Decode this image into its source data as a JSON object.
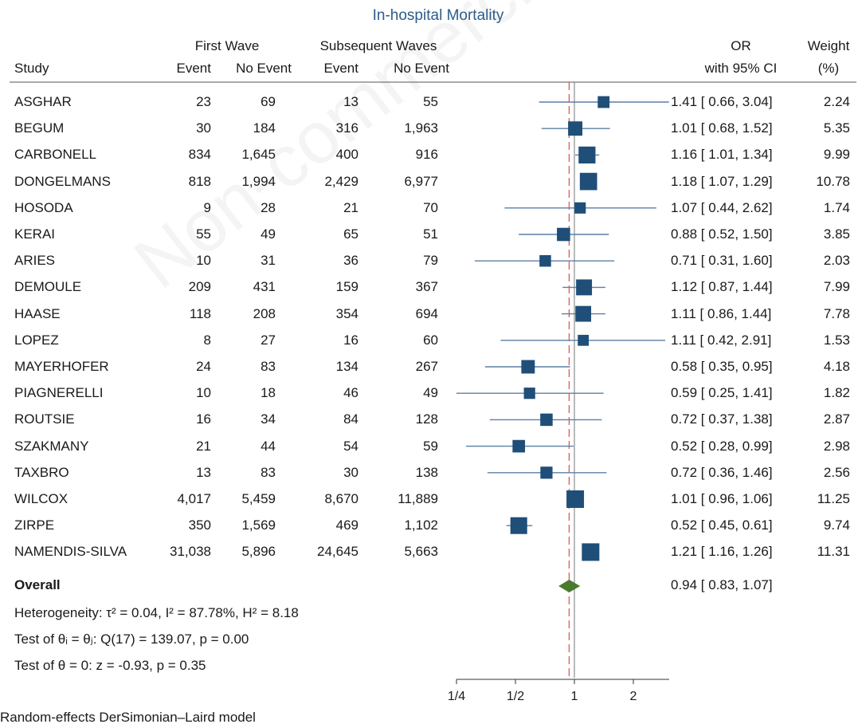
{
  "header": {
    "title": "In-hospital Mortality",
    "group1": "First Wave",
    "group2": "Subsequent Waves",
    "study_col": "Study",
    "event_col": "Event",
    "noevent_col": "No Event",
    "or_col_line1": "OR",
    "or_col_line2": "with 95% CI",
    "weight_line1": "Weight",
    "weight_line2": "(%)"
  },
  "rows": [
    {
      "study": "ASGHAR",
      "fw_event": "23",
      "fw_noevent": "69",
      "sw_event": "13",
      "sw_noevent": "55",
      "or_text": "1.41 [ 0.66, 3.04]",
      "weight": "2.24"
    },
    {
      "study": "BEGUM",
      "fw_event": "30",
      "fw_noevent": "184",
      "sw_event": "316",
      "sw_noevent": "1,963",
      "or_text": "1.01 [ 0.68, 1.52]",
      "weight": "5.35"
    },
    {
      "study": "CARBONELL",
      "fw_event": "834",
      "fw_noevent": "1,645",
      "sw_event": "400",
      "sw_noevent": "916",
      "or_text": "1.16 [ 1.01, 1.34]",
      "weight": "9.99"
    },
    {
      "study": "DONGELMANS",
      "fw_event": "818",
      "fw_noevent": "1,994",
      "sw_event": "2,429",
      "sw_noevent": "6,977",
      "or_text": "1.18 [ 1.07, 1.29]",
      "weight": "10.78"
    },
    {
      "study": "HOSODA",
      "fw_event": "9",
      "fw_noevent": "28",
      "sw_event": "21",
      "sw_noevent": "70",
      "or_text": "1.07 [ 0.44, 2.62]",
      "weight": "1.74"
    },
    {
      "study": "KERAI",
      "fw_event": "55",
      "fw_noevent": "49",
      "sw_event": "65",
      "sw_noevent": "51",
      "or_text": "0.88 [ 0.52, 1.50]",
      "weight": "3.85"
    },
    {
      "study": "ARIES",
      "fw_event": "10",
      "fw_noevent": "31",
      "sw_event": "36",
      "sw_noevent": "79",
      "or_text": "0.71 [ 0.31, 1.60]",
      "weight": "2.03"
    },
    {
      "study": "DEMOULE",
      "fw_event": "209",
      "fw_noevent": "431",
      "sw_event": "159",
      "sw_noevent": "367",
      "or_text": "1.12 [ 0.87, 1.44]",
      "weight": "7.99"
    },
    {
      "study": "HAASE",
      "fw_event": "118",
      "fw_noevent": "208",
      "sw_event": "354",
      "sw_noevent": "694",
      "or_text": "1.11 [ 0.86, 1.44]",
      "weight": "7.78"
    },
    {
      "study": "LOPEZ",
      "fw_event": "8",
      "fw_noevent": "27",
      "sw_event": "16",
      "sw_noevent": "60",
      "or_text": "1.11 [ 0.42, 2.91]",
      "weight": "1.53"
    },
    {
      "study": "MAYERHOFER",
      "fw_event": "24",
      "fw_noevent": "83",
      "sw_event": "134",
      "sw_noevent": "267",
      "or_text": "0.58 [ 0.35, 0.95]",
      "weight": "4.18"
    },
    {
      "study": "PIAGNERELLI",
      "fw_event": "10",
      "fw_noevent": "18",
      "sw_event": "46",
      "sw_noevent": "49",
      "or_text": "0.59 [ 0.25, 1.41]",
      "weight": "1.82"
    },
    {
      "study": "ROUTSIE",
      "fw_event": "16",
      "fw_noevent": "34",
      "sw_event": "84",
      "sw_noevent": "128",
      "or_text": "0.72 [ 0.37, 1.38]",
      "weight": "2.87"
    },
    {
      "study": "SZAKMANY",
      "fw_event": "21",
      "fw_noevent": "44",
      "sw_event": "54",
      "sw_noevent": "59",
      "or_text": "0.52 [ 0.28, 0.99]",
      "weight": "2.98"
    },
    {
      "study": "TAXBRO",
      "fw_event": "13",
      "fw_noevent": "83",
      "sw_event": "30",
      "sw_noevent": "138",
      "or_text": "0.72 [ 0.36, 1.46]",
      "weight": "2.56"
    },
    {
      "study": "WILCOX",
      "fw_event": "4,017",
      "fw_noevent": "5,459",
      "sw_event": "8,670",
      "sw_noevent": "11,889",
      "or_text": "1.01 [ 0.96, 1.06]",
      "weight": "11.25"
    },
    {
      "study": "ZIRPE",
      "fw_event": "350",
      "fw_noevent": "1,569",
      "sw_event": "469",
      "sw_noevent": "1,102",
      "or_text": "0.52 [ 0.45, 0.61]",
      "weight": "9.74"
    },
    {
      "study": "NAMENDIS-SILVA",
      "fw_event": "31,038",
      "fw_noevent": "5,896",
      "sw_event": "24,645",
      "sw_noevent": "5,663",
      "or_text": "1.21 [ 1.16, 1.26]",
      "weight": "11.31"
    }
  ],
  "overall": {
    "label": "Overall",
    "or_text": "0.94 [ 0.83, 1.07]"
  },
  "footer": {
    "heterogeneity": "Heterogeneity: τ² = 0.04, I² = 87.78%, H² = 8.18",
    "test_theta_i": "Test of θᵢ = θⱼ: Q(17) = 139.07, p = 0.00",
    "test_theta_0": "Test of θ = 0: z = -0.93, p = 0.35",
    "model": "Random-effects DerSimonian–Laird model"
  },
  "watermark": "Non-commercial",
  "chart_data": {
    "type": "forest",
    "title": "In-hospital Mortality",
    "x_scale": "log",
    "x_ticks": [
      0.25,
      0.5,
      1,
      2
    ],
    "x_tick_labels": [
      "1/4",
      "1/2",
      "1",
      "2"
    ],
    "xlim": [
      0.25,
      3.2
    ],
    "null_line": 1,
    "overall_line": 0.94,
    "colors": {
      "marker": "#1f4e79",
      "ci": "#5b7fa3",
      "diamond": "#4a7a2c",
      "overall_line": "#d9534f",
      "axis": "#333333"
    },
    "studies": [
      {
        "name": "ASGHAR",
        "or": 1.41,
        "lo": 0.66,
        "hi": 3.04,
        "weight": 2.24
      },
      {
        "name": "BEGUM",
        "or": 1.01,
        "lo": 0.68,
        "hi": 1.52,
        "weight": 5.35
      },
      {
        "name": "CARBONELL",
        "or": 1.16,
        "lo": 1.01,
        "hi": 1.34,
        "weight": 9.99
      },
      {
        "name": "DONGELMANS",
        "or": 1.18,
        "lo": 1.07,
        "hi": 1.29,
        "weight": 10.78
      },
      {
        "name": "HOSODA",
        "or": 1.07,
        "lo": 0.44,
        "hi": 2.62,
        "weight": 1.74
      },
      {
        "name": "KERAI",
        "or": 0.88,
        "lo": 0.52,
        "hi": 1.5,
        "weight": 3.85
      },
      {
        "name": "ARIES",
        "or": 0.71,
        "lo": 0.31,
        "hi": 1.6,
        "weight": 2.03
      },
      {
        "name": "DEMOULE",
        "or": 1.12,
        "lo": 0.87,
        "hi": 1.44,
        "weight": 7.99
      },
      {
        "name": "HAASE",
        "or": 1.11,
        "lo": 0.86,
        "hi": 1.44,
        "weight": 7.78
      },
      {
        "name": "LOPEZ",
        "or": 1.11,
        "lo": 0.42,
        "hi": 2.91,
        "weight": 1.53
      },
      {
        "name": "MAYERHOFER",
        "or": 0.58,
        "lo": 0.35,
        "hi": 0.95,
        "weight": 4.18
      },
      {
        "name": "PIAGNERELLI",
        "or": 0.59,
        "lo": 0.25,
        "hi": 1.41,
        "weight": 1.82
      },
      {
        "name": "ROUTSIE",
        "or": 0.72,
        "lo": 0.37,
        "hi": 1.38,
        "weight": 2.87
      },
      {
        "name": "SZAKMANY",
        "or": 0.52,
        "lo": 0.28,
        "hi": 0.99,
        "weight": 2.98
      },
      {
        "name": "TAXBRO",
        "or": 0.72,
        "lo": 0.36,
        "hi": 1.46,
        "weight": 2.56
      },
      {
        "name": "WILCOX",
        "or": 1.01,
        "lo": 0.96,
        "hi": 1.06,
        "weight": 11.25
      },
      {
        "name": "ZIRPE",
        "or": 0.52,
        "lo": 0.45,
        "hi": 0.61,
        "weight": 9.74
      },
      {
        "name": "NAMENDIS-SILVA",
        "or": 1.21,
        "lo": 1.16,
        "hi": 1.26,
        "weight": 11.31
      }
    ],
    "overall": {
      "or": 0.94,
      "lo": 0.83,
      "hi": 1.07
    }
  }
}
